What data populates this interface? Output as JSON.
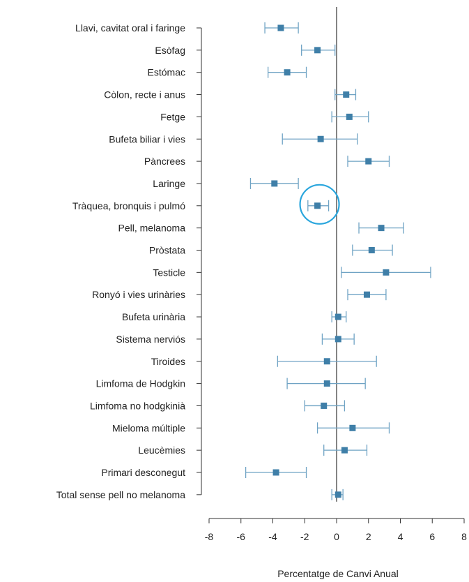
{
  "chart_data": {
    "type": "forest",
    "xlabel": "Percentatge de Canvi Anual",
    "xlim": [
      -8,
      8
    ],
    "xticks": [
      -8,
      -6,
      -4,
      -2,
      0,
      2,
      4,
      6,
      8
    ],
    "reference_line": 0,
    "marker_color": "#3f7fa8",
    "ci_color": "#6fa3c4",
    "highlight_color": "#2aa6dd",
    "highlight_category": "Tràquea, bronquis i pulmó",
    "categories": [
      "Llavi, cavitat oral i faringe",
      "Esòfag",
      "Estómac",
      "Còlon, recte i anus",
      "Fetge",
      "Bufeta biliar i vies",
      "Pàncrees",
      "Laringe",
      "Tràquea, bronquis i pulmó",
      "Pell, melanoma",
      "Pròstata",
      "Testicle",
      "Ronyó i vies urinàries",
      "Bufeta urinària",
      "Sistema nerviós",
      "Tiroides",
      "Limfoma de Hodgkin",
      "Limfoma no hodgkinià",
      "Mieloma múltiple",
      "Leucèmies",
      "Primari desconegut",
      "Total sense pell no melanoma"
    ],
    "estimate": [
      -3.5,
      -1.2,
      -3.1,
      0.6,
      0.8,
      -1.0,
      2.0,
      -3.9,
      -1.2,
      2.8,
      2.2,
      3.1,
      1.9,
      0.1,
      0.1,
      -0.6,
      -0.6,
      -0.8,
      1.0,
      0.5,
      -3.8,
      0.1
    ],
    "ci_lower": [
      -4.5,
      -2.2,
      -4.3,
      -0.1,
      -0.3,
      -3.4,
      0.7,
      -5.4,
      -1.8,
      1.4,
      1.0,
      0.3,
      0.7,
      -0.3,
      -0.9,
      -3.7,
      -3.1,
      -2.0,
      -1.2,
      -0.8,
      -5.7,
      -0.3
    ],
    "ci_upper": [
      -2.4,
      -0.1,
      -1.9,
      1.2,
      2.0,
      1.3,
      3.3,
      -2.4,
      -0.5,
      4.2,
      3.5,
      5.9,
      3.1,
      0.6,
      1.1,
      2.5,
      1.8,
      0.5,
      3.3,
      1.9,
      -1.9,
      0.4
    ]
  }
}
